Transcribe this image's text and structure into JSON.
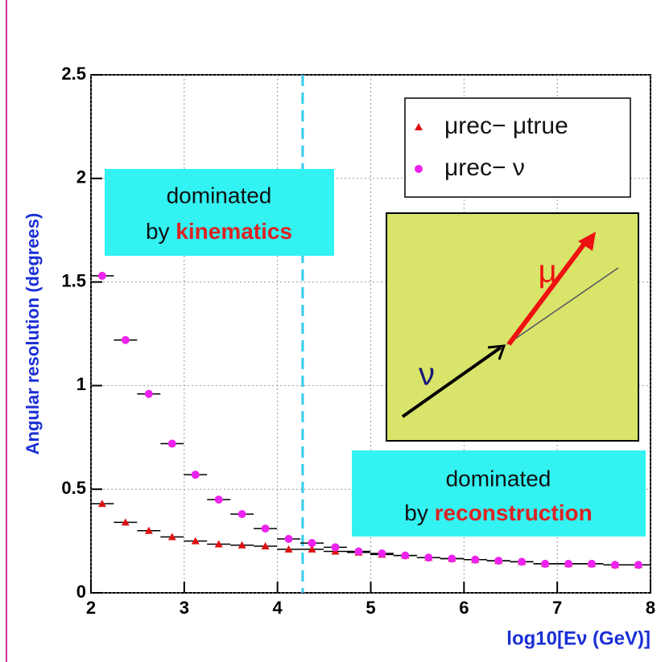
{
  "chart_data": {
    "type": "scatter",
    "x_label": "log10[Eν (GeV)]",
    "y_label": "Angular resolution (degrees)",
    "xlim": [
      2,
      8
    ],
    "ylim": [
      0,
      2.5
    ],
    "xticks": [
      2,
      3,
      4,
      5,
      6,
      7,
      8
    ],
    "yticks": [
      0,
      0.5,
      1,
      1.5,
      2,
      2.5
    ],
    "grid": true,
    "legend": "upper right",
    "vline": {
      "x": 4.27,
      "color": "#33ccee"
    },
    "series": [
      {
        "name": "μrec− μtrue",
        "marker": "triangle",
        "color": "#dd1111",
        "xerr": 0.125,
        "x": [
          2.12,
          2.37,
          2.62,
          2.87,
          3.12,
          3.37,
          3.62,
          3.87,
          4.12,
          4.37,
          4.62,
          4.87,
          5.12,
          5.37,
          5.62,
          5.87,
          6.12,
          6.37,
          6.62,
          6.87,
          7.12,
          7.37,
          7.62,
          7.87
        ],
        "values": [
          0.43,
          0.34,
          0.3,
          0.27,
          0.25,
          0.235,
          0.23,
          0.225,
          0.21,
          0.21,
          0.2,
          0.195,
          0.185,
          0.18,
          0.17,
          0.165,
          0.16,
          0.155,
          0.15,
          0.14,
          0.14,
          0.14,
          0.135,
          0.135
        ]
      },
      {
        "name": "μrec− ν",
        "marker": "circle",
        "color": "#ee22ee",
        "xerr": 0.125,
        "x": [
          2.12,
          2.37,
          2.62,
          2.87,
          3.12,
          3.37,
          3.62,
          3.87,
          4.12,
          4.37,
          4.62,
          4.87,
          5.12,
          5.37,
          5.62,
          5.87,
          6.12,
          6.37,
          6.62,
          6.87,
          7.12,
          7.37,
          7.62,
          7.87
        ],
        "values": [
          1.53,
          1.22,
          0.96,
          0.72,
          0.57,
          0.45,
          0.38,
          0.31,
          0.26,
          0.24,
          0.22,
          0.2,
          0.19,
          0.18,
          0.17,
          0.165,
          0.16,
          0.155,
          0.15,
          0.14,
          0.14,
          0.14,
          0.135,
          0.135
        ]
      }
    ],
    "annotations": [
      {
        "line1": "dominated",
        "line2": "by",
        "highlight": "kinematics"
      },
      {
        "line1": "dominated",
        "line2": "by",
        "highlight": "reconstruction"
      }
    ],
    "inset_labels": {
      "mu": "μ",
      "nu": "ν"
    }
  }
}
